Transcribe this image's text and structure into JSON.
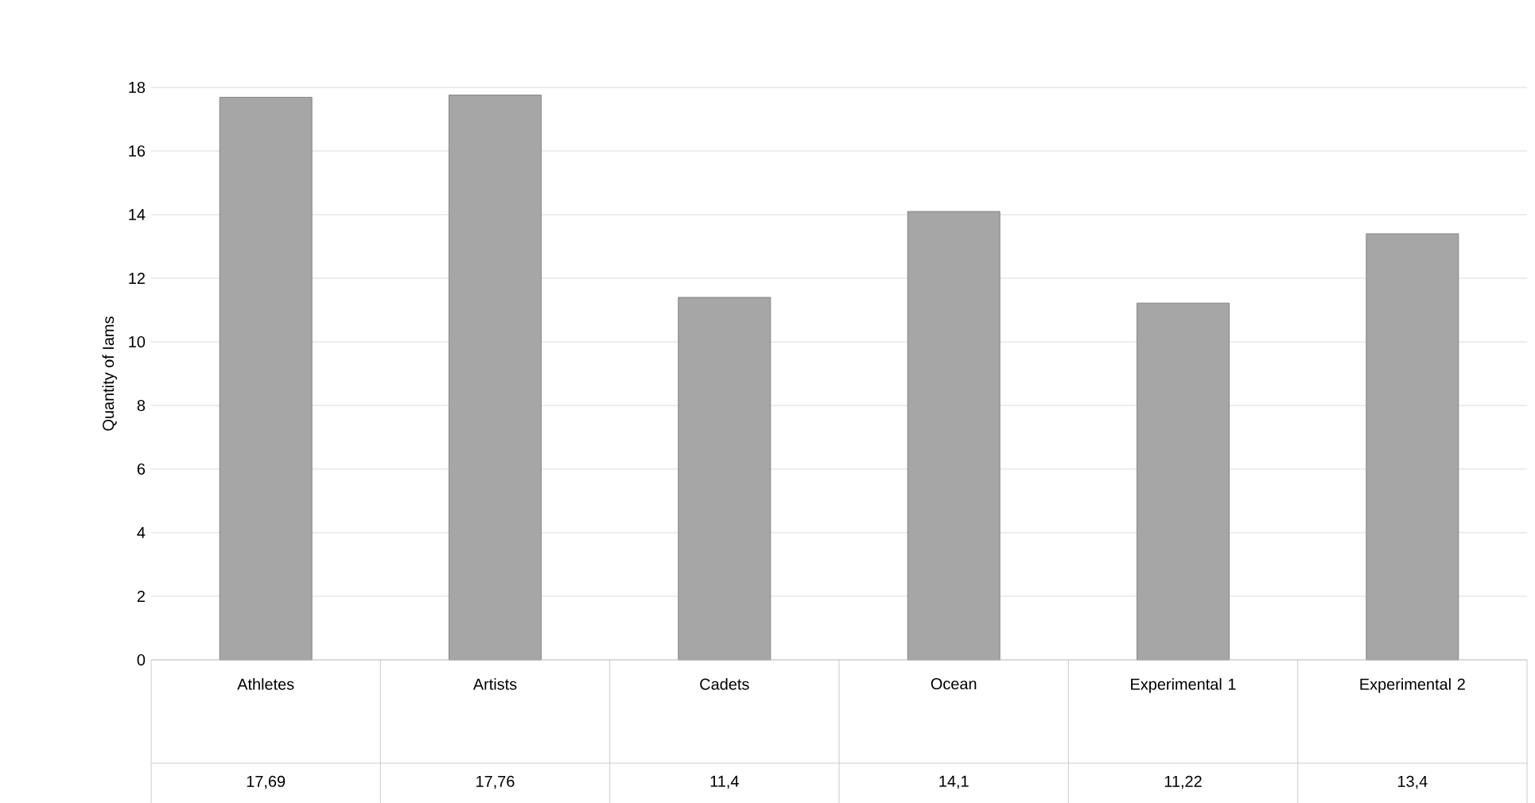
{
  "chart_data": {
    "type": "bar",
    "ylabel": "Quantity of Iams",
    "categories": [
      "Athletes",
      "Artists",
      "Cadets",
      "Ocean",
      "Experimental 1",
      "Experimental 2"
    ],
    "values": [
      17.69,
      17.76,
      11.4,
      14.1,
      11.22,
      13.4
    ],
    "value_labels": [
      "17,69",
      "17,76",
      "11,4",
      "14,1",
      "11,22",
      "13,4"
    ],
    "color": "#a6a6a6",
    "ylim": [
      0,
      18
    ],
    "yticks": [
      0,
      2,
      4,
      6,
      8,
      10,
      12,
      14,
      16,
      18
    ],
    "grid": "y"
  }
}
